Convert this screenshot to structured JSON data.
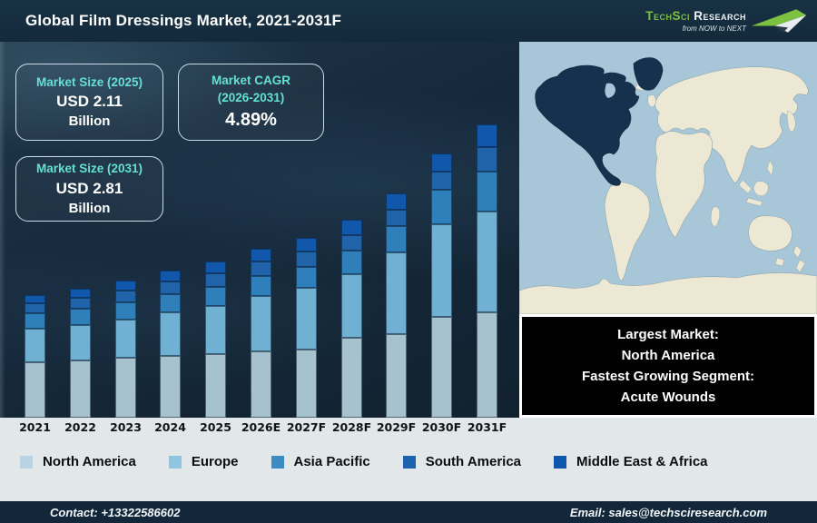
{
  "header": {
    "title": "Global Film Dressings Market, 2021-2031F",
    "logo": {
      "brand_primary": "TechSci",
      "brand_secondary": "Research",
      "tagline": "from NOW to NEXT",
      "brand_green": "#7CC142"
    }
  },
  "info_boxes": [
    {
      "title": "Market Size (2025)",
      "value": "USD 2.11",
      "unit": "Billion"
    },
    {
      "title": "Market CAGR",
      "subtitle": "(2026-2031)",
      "value": "4.89%"
    },
    {
      "title": "Market Size (2031)",
      "value": "USD 2.81",
      "unit": "Billion"
    }
  ],
  "chart_data": {
    "type": "bar",
    "stacked": true,
    "title": "Global Film Dressings Market, 2021-2031F",
    "categories": [
      "2021",
      "2022",
      "2023",
      "2024",
      "2025",
      "2026E",
      "2027F",
      "2028F",
      "2029F",
      "2030F",
      "2031F"
    ],
    "units": "relative stacked-bar height in px as drawn (no numeric value axis shown in figure)",
    "series": [
      {
        "name": "North America",
        "color": "#A6C2CE",
        "values": [
          61,
          63,
          66,
          68,
          70,
          73,
          75,
          88,
          92,
          111,
          116
        ]
      },
      {
        "name": "Europe",
        "color": "#6FB0D3",
        "values": [
          37,
          39,
          42,
          48,
          53,
          61,
          68,
          70,
          90,
          102,
          111
        ]
      },
      {
        "name": "Asia Pacific",
        "color": "#2F80BA",
        "values": [
          17,
          18,
          19,
          20,
          21,
          22,
          23,
          26,
          29,
          38,
          44
        ]
      },
      {
        "name": "South America",
        "color": "#2063A9",
        "values": [
          11,
          12,
          13,
          14,
          15,
          16,
          17,
          17,
          18,
          20,
          27
        ]
      },
      {
        "name": "Middle East & Africa",
        "color": "#1158AC",
        "values": [
          9,
          10,
          11,
          12,
          13,
          14,
          15,
          17,
          18,
          20,
          25
        ]
      }
    ],
    "legend_position": "bottom",
    "grid": false,
    "key_values": {
      "market_size_2025_usd_billion": 2.11,
      "market_size_2031_usd_billion": 2.81,
      "cagr_2026_2031_pct": 4.89
    }
  },
  "legend": [
    {
      "label": "North America",
      "swatch": "#B9D3E4"
    },
    {
      "label": "Europe",
      "swatch": "#8FC5E0"
    },
    {
      "label": "Asia Pacific",
      "swatch": "#3C8CC1"
    },
    {
      "label": "South America",
      "swatch": "#1C62AE"
    },
    {
      "label": "Middle East & Africa",
      "swatch": "#0F57AD"
    }
  ],
  "callout": {
    "lines": [
      "Largest Market:",
      "North America",
      "Fastest Growing Segment:",
      "Acute Wounds"
    ]
  },
  "map": {
    "highlighted_region": "North America",
    "ocean_color": "#A7C7D9",
    "land_color": "#ECE8D4",
    "highlight_color": "#16314E"
  },
  "footer": {
    "contact": "Contact: +13322586602",
    "email": "Email: sales@techsciresearch.com"
  },
  "colors": {
    "header_bg": "#142A3B",
    "accent_teal": "#65E0D1",
    "strip_bg": "#E2E8EA",
    "footer_bg": "#12283A",
    "callout_bg": "#000000"
  }
}
